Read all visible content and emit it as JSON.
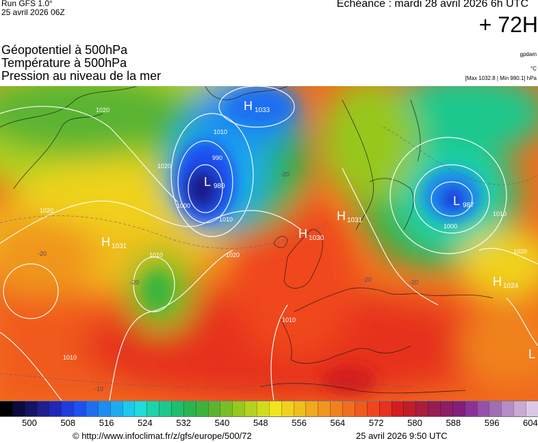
{
  "header": {
    "run": "Run GFS 1.0°",
    "run_date": "25 avril 2026 06Z",
    "valid_time": "Echéance : mardi 28 avril 2026 6h UTC",
    "lead": "+ 72H"
  },
  "parameters": [
    {
      "label": "Géopotentiel à 500hPa",
      "unit": "gpdam"
    },
    {
      "label": "Température à 500hPa",
      "unit": "°C"
    },
    {
      "label": "Pression au niveau de la mer",
      "unit": "[Max 1032.8 | Min 980.1] hPa"
    }
  ],
  "map": {
    "pressure_centers": [
      {
        "type": "H",
        "value": "1033",
        "color": "#ffffff"
      },
      {
        "type": "L",
        "value": "980",
        "color": "#ffffff"
      },
      {
        "type": "L",
        "value": "987",
        "color": "#ffffff"
      },
      {
        "type": "H",
        "value": "1031",
        "color": "#ffffff"
      },
      {
        "type": "H",
        "value": "1030",
        "color": "#ffffff"
      },
      {
        "type": "H",
        "value": "1031",
        "color": "#ffffff"
      },
      {
        "type": "H",
        "value": "1024",
        "color": "#ffffff"
      },
      {
        "type": "L",
        "value": "",
        "color": "#ffffff"
      }
    ],
    "isobar_labels": [
      "1020",
      "1010",
      "1000",
      "990",
      "1010",
      "1020",
      "1020",
      "1010",
      "1020",
      "1010",
      "1000",
      "1010",
      "1020",
      "1010"
    ],
    "temperature_labels": [
      "-20",
      "-20",
      "-20",
      "-10",
      "-20",
      "-20"
    ]
  },
  "scale": {
    "colors": [
      "#000000",
      "#0a0a3c",
      "#141464",
      "#1e1e8c",
      "#1e28b4",
      "#1e3cdc",
      "#1e50f0",
      "#1e6ef0",
      "#1e8cf0",
      "#1eaaf0",
      "#1ec8f0",
      "#1edcdc",
      "#1ed2aa",
      "#1ec88c",
      "#1ebe6e",
      "#28b450",
      "#3cb43c",
      "#5ab432",
      "#78be28",
      "#96c81e",
      "#b4d21e",
      "#d2dc1e",
      "#f0e61e",
      "#f0d21e",
      "#f0be1e",
      "#f0aa1e",
      "#f0961e",
      "#f0821e",
      "#f06e1e",
      "#f05a1e",
      "#f0461e",
      "#e6321e",
      "#d21e1e",
      "#be1e28",
      "#aa1e3c",
      "#961e50",
      "#8c1e64",
      "#821e78",
      "#8c3296",
      "#9650aa",
      "#a06eb4",
      "#b48cc8",
      "#c8aad2",
      "#dcc8e6"
    ],
    "ticks": [
      "500",
      "508",
      "516",
      "524",
      "532",
      "540",
      "548",
      "556",
      "564",
      "572",
      "580",
      "588",
      "596",
      "604"
    ]
  },
  "footer": {
    "credit": "© http://www.infoclimat.fr/z/gfs/europe/500/72",
    "generated": "25 avril 2026  9:50 UTC"
  }
}
